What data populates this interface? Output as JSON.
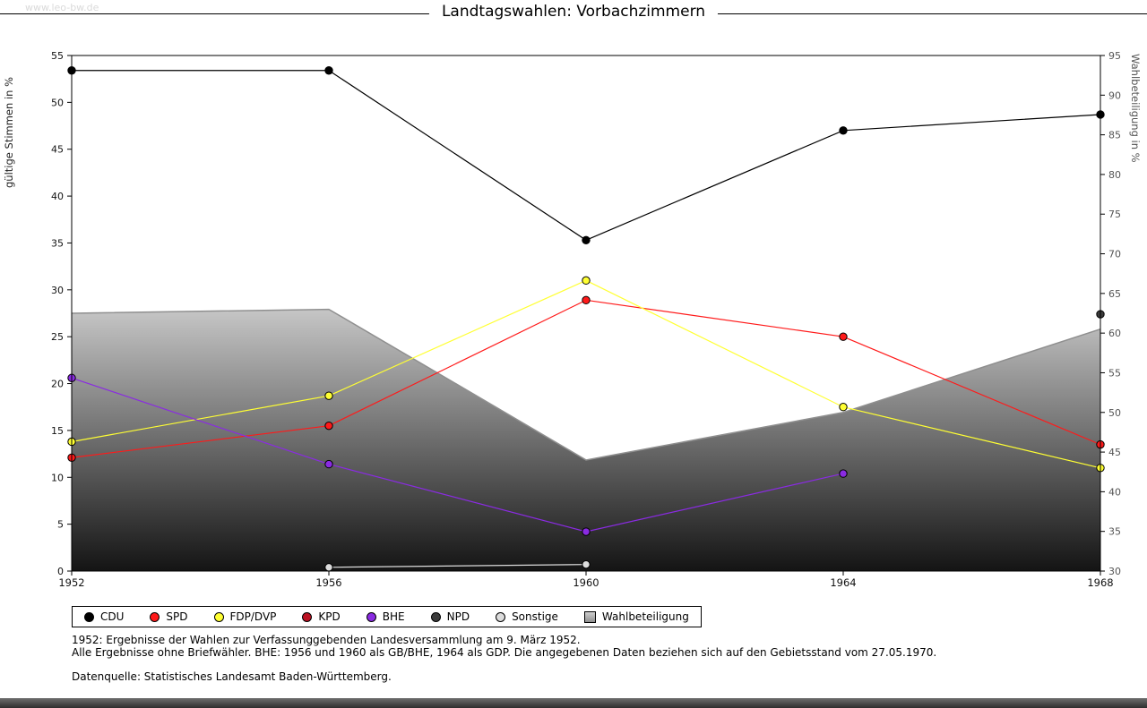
{
  "page": {
    "watermark": "www.leo-bw.de"
  },
  "chart_data": {
    "type": "line",
    "title": "Landtagswahlen: Vorbachzimmern",
    "x_categories": [
      "1952",
      "1956",
      "1960",
      "1964",
      "1968"
    ],
    "left_axis": {
      "label": "gültige Stimmen in %",
      "min": 0,
      "max": 55,
      "tick_step": 5
    },
    "right_axis": {
      "label": "Wahlbeteiligung in %",
      "min": 30,
      "max": 95,
      "tick_step": 5
    },
    "series": [
      {
        "name": "CDU",
        "color": "#000000",
        "values": [
          53.4,
          53.4,
          35.3,
          47.0,
          48.7
        ]
      },
      {
        "name": "SPD",
        "color": "#ff1a1a",
        "values": [
          12.1,
          15.5,
          28.9,
          25.0,
          13.5
        ]
      },
      {
        "name": "FDP/DVP",
        "color": "#ffff33",
        "values": [
          13.8,
          18.7,
          31.0,
          17.5,
          11.0
        ]
      },
      {
        "name": "KPD",
        "color": "#bb1122",
        "values": [
          null,
          null,
          null,
          null,
          null
        ]
      },
      {
        "name": "BHE",
        "color": "#8a2be2",
        "values": [
          20.6,
          11.4,
          4.2,
          10.4,
          null
        ]
      },
      {
        "name": "NPD",
        "color": "#3c3c3c",
        "values": [
          null,
          null,
          null,
          null,
          27.4
        ]
      },
      {
        "name": "Sonstige",
        "color": "#dcdcdc",
        "values": [
          null,
          0.4,
          0.7,
          null,
          null
        ]
      }
    ],
    "participation": {
      "name": "Wahlbeteiligung",
      "axis": "right",
      "values": [
        62.5,
        63.0,
        44.0,
        50.0,
        60.5
      ],
      "line_color": "#8f8f8f",
      "fill_top": "#c6c6c6",
      "fill_bottom": "#141414"
    }
  },
  "footnotes": {
    "line1": "1952: Ergebnisse der Wahlen zur Verfassunggebenden Landesversammlung am 9. März 1952.",
    "line2": "Alle Ergebnisse ohne Briefwähler. BHE: 1956 und 1960 als GB/BHE, 1964 als GDP. Die angegebenen Daten beziehen sich auf den Gebietsstand vom 27.05.1970.",
    "source": "Datenquelle: Statistisches Landesamt Baden-Württemberg."
  }
}
